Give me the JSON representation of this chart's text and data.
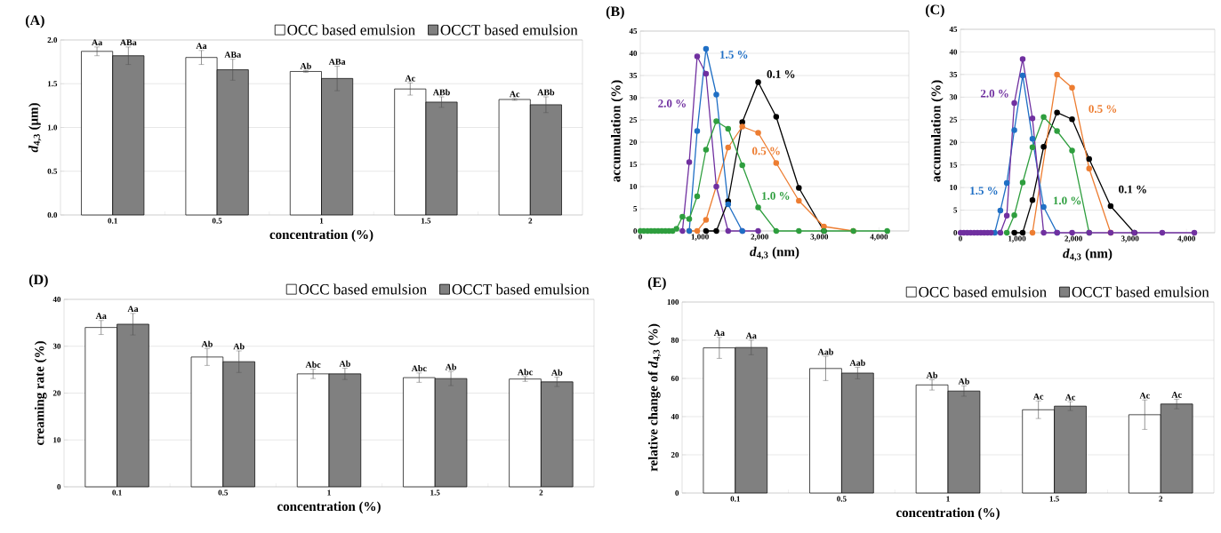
{
  "chart_data": [
    {
      "type": "bar",
      "title": "(A)",
      "xlabel": "concentration (%)",
      "ylabel": "*d*$_{4,3}$ (μm)",
      "categories": [
        "0.1",
        "0.5",
        "1",
        "1.5",
        "2"
      ],
      "ylim": [
        0,
        2
      ],
      "yticks": [
        {
          "value": 0,
          "label": "0.0"
        },
        {
          "value": 0.5,
          "label": "0.5"
        },
        {
          "value": 1,
          "label": "1.0"
        },
        {
          "value": 1.5,
          "label": "1.5"
        },
        {
          "value": 2,
          "label": "2.0"
        }
      ],
      "grid": "y",
      "legend": "top right",
      "series": [
        {
          "name": "OCC based emulsion",
          "color": "#ffffff",
          "values": [
            1.87,
            1.8,
            1.64,
            1.44,
            1.32
          ],
          "errors": [
            0.05,
            0.08,
            0.01,
            0.07,
            0.01
          ],
          "value_labels": [
            "Aa",
            "Aa",
            "Ab",
            "Ac",
            "Ac"
          ]
        },
        {
          "name": "OCCT based emulsion",
          "color": "#808080",
          "values": [
            1.82,
            1.66,
            1.56,
            1.29,
            1.26
          ],
          "errors": [
            0.1,
            0.12,
            0.14,
            0.06,
            0.09
          ],
          "value_labels": [
            "ABa",
            "ABa",
            "ABa",
            "ABb",
            "ABb"
          ]
        }
      ]
    },
    {
      "type": "line",
      "title": "(B)",
      "xlabel": "*d*$_{4,3}$ (nm)",
      "ylabel": "accumulation (%)",
      "xlim": [
        0,
        4500
      ],
      "xticks": [
        0,
        {
          "value": 1000,
          "label": "1,000"
        },
        {
          "value": 2000,
          "label": "2,000"
        },
        {
          "value": 3000,
          "label": "3,000"
        },
        {
          "value": 4000,
          "label": "4,000"
        }
      ],
      "ylim": [
        0,
        45
      ],
      "yticks": [
        0,
        5,
        10,
        15,
        20,
        25,
        30,
        35,
        40,
        45
      ],
      "grid": "y",
      "marker": "circle",
      "line_style": "solid",
      "series": [
        {
          "name": "2.0 %",
          "color": "#7030a0",
          "x": [
            706,
            820,
            953,
            1101,
            1274,
            1472,
            1709,
            1975
          ],
          "values": [
            0,
            15.5,
            39.3,
            35.4,
            10,
            0,
            0,
            0
          ]
        },
        {
          "name": "0.1 %",
          "color": "#000000",
          "x": [
            1101,
            1274,
            1472,
            1709,
            1975,
            2277,
            2657,
            3077
          ],
          "values": [
            0,
            0,
            6.7,
            24.5,
            33.5,
            25.7,
            9.7,
            0
          ]
        },
        {
          "name": "0.5 %",
          "color": "#ed7d31",
          "x": [
            820,
            953,
            1101,
            1472,
            1709,
            1975,
            2277,
            2657,
            3077,
            3570
          ],
          "values": [
            0,
            0,
            2.5,
            18.8,
            23.5,
            22.1,
            15.3,
            6.8,
            1.0,
            0
          ]
        },
        {
          "name": "1.5 %",
          "color": "#1f6fc5",
          "x": [
            820,
            953,
            1101,
            1274,
            1472,
            1709
          ],
          "values": [
            0,
            22.5,
            41,
            30.7,
            6.0,
            0
          ]
        },
        {
          "name": "1.0 %",
          "color": "#2e9e3e",
          "x": [
            0,
            60,
            120,
            180,
            240,
            300,
            360,
            420,
            480,
            540,
            607,
            706,
            820,
            953,
            1101,
            1274,
            1472,
            1709,
            1975,
            2277,
            2657,
            3077,
            3570,
            4138
          ],
          "values": [
            0,
            0,
            0,
            0,
            0,
            0,
            0,
            0,
            0,
            0,
            0.5,
            3.2,
            2.7,
            7.8,
            18.3,
            24.7,
            23.0,
            14.8,
            5.3,
            0,
            0,
            0,
            0,
            0
          ]
        }
      ]
    },
    {
      "type": "line",
      "title": "(C)",
      "xlabel": "*d*$_{4,3}$ (nm)",
      "ylabel": "accumulation (%)",
      "xlim": [
        0,
        4500
      ],
      "xticks": [
        0,
        {
          "value": 1000,
          "label": "1,000"
        },
        {
          "value": 2000,
          "label": "2,000"
        },
        {
          "value": 3000,
          "label": "3,000"
        },
        {
          "value": 4000,
          "label": "4,000"
        }
      ],
      "ylim": [
        0,
        45
      ],
      "yticks": [
        0,
        5,
        10,
        15,
        20,
        25,
        30,
        35,
        40,
        45
      ],
      "grid": "y",
      "marker": "circle",
      "line_style": "solid",
      "series": [
        {
          "name": "0.1 %",
          "color": "#000000",
          "x": [
            953,
            1101,
            1274,
            1472,
            1709,
            1975,
            2277,
            2657,
            3077
          ],
          "values": [
            0,
            0,
            7.2,
            19.0,
            26.6,
            25.1,
            16.3,
            5.9,
            0
          ]
        },
        {
          "name": "0.5 %",
          "color": "#ed7d31",
          "x": [
            1274,
            1709,
            1975,
            2277,
            2657
          ],
          "values": [
            0,
            35.0,
            32.1,
            14.2,
            0
          ]
        },
        {
          "name": "1.0 %",
          "color": "#2e9e3e",
          "x": [
            820,
            953,
            1101,
            1274,
            1472,
            1709,
            1975,
            2277
          ],
          "values": [
            0,
            3.9,
            11.1,
            18.9,
            25.6,
            22.5,
            18.2,
            0
          ]
        },
        {
          "name": "1.5 %",
          "color": "#1f6fc5",
          "x": [
            607,
            706,
            820,
            953,
            1101,
            1274,
            1472,
            1709
          ],
          "values": [
            0,
            4.9,
            11.0,
            22.7,
            34.8,
            20.8,
            5.7,
            0
          ]
        },
        {
          "name": "2.0 %",
          "color": "#7030a0",
          "x": [
            0,
            60,
            120,
            180,
            240,
            300,
            360,
            420,
            480,
            540,
            706,
            820,
            953,
            1101,
            1274,
            1472,
            1709,
            1975,
            2277,
            2657,
            3077,
            3570,
            4138
          ],
          "values": [
            0,
            0,
            0,
            0,
            0,
            0,
            0,
            0,
            0,
            0,
            0,
            3.8,
            28.7,
            38.4,
            25.3,
            0,
            0,
            0,
            0,
            0,
            0,
            0,
            0
          ]
        }
      ]
    },
    {
      "type": "bar",
      "title": "(D)",
      "xlabel": "concentration (%)",
      "ylabel": "creaming rate (%)",
      "categories": [
        "0.1",
        "0.5",
        "1",
        "1.5",
        "2"
      ],
      "ylim": [
        0,
        40
      ],
      "yticks": [
        0,
        10,
        20,
        30,
        40
      ],
      "grid": "y",
      "legend": "top right",
      "series": [
        {
          "name": "OCC based emulsion",
          "color": "#ffffff",
          "values": [
            34.0,
            27.7,
            24.1,
            23.3,
            23.0
          ],
          "errors": [
            1.5,
            1.8,
            1.0,
            1.0,
            0.5
          ],
          "value_labels": [
            "Aa",
            "Ab",
            "Abc",
            "Abc",
            "Abc"
          ]
        },
        {
          "name": "OCCT based emulsion",
          "color": "#808080",
          "values": [
            34.7,
            26.7,
            24.1,
            23.1,
            22.4
          ],
          "errors": [
            2.3,
            2.3,
            1.2,
            1.5,
            1.0
          ],
          "value_labels": [
            "Aa",
            "Ab",
            "Ab",
            "Ab",
            "Ab"
          ]
        }
      ]
    },
    {
      "type": "bar",
      "title": "(E)",
      "xlabel": "concentration (%)",
      "ylabel": "relative change of *d*$_{4,3}$ (%)",
      "categories": [
        "0.1",
        "0.5",
        "1",
        "1.5",
        "2"
      ],
      "ylim": [
        0,
        100
      ],
      "yticks": [
        0,
        20,
        40,
        60,
        80,
        100
      ],
      "grid": "y",
      "legend": "top right",
      "series": [
        {
          "name": "OCC based emulsion",
          "color": "#ffffff",
          "values": [
            76.0,
            65.2,
            56.6,
            43.6,
            41.0
          ],
          "errors": [
            5.5,
            6.3,
            2.7,
            4.6,
            7.7
          ],
          "value_labels": [
            "Aa",
            "Aab",
            "Ab",
            "Ac",
            "Ac"
          ]
        },
        {
          "name": "OCCT based emulsion",
          "color": "#808080",
          "values": [
            76.2,
            62.8,
            53.4,
            45.5,
            46.6
          ],
          "errors": [
            3.8,
            3.0,
            2.7,
            2.3,
            2.5
          ],
          "value_labels": [
            "Aa",
            "Aab",
            "Ab",
            "Ac",
            "Ac"
          ]
        }
      ]
    }
  ]
}
